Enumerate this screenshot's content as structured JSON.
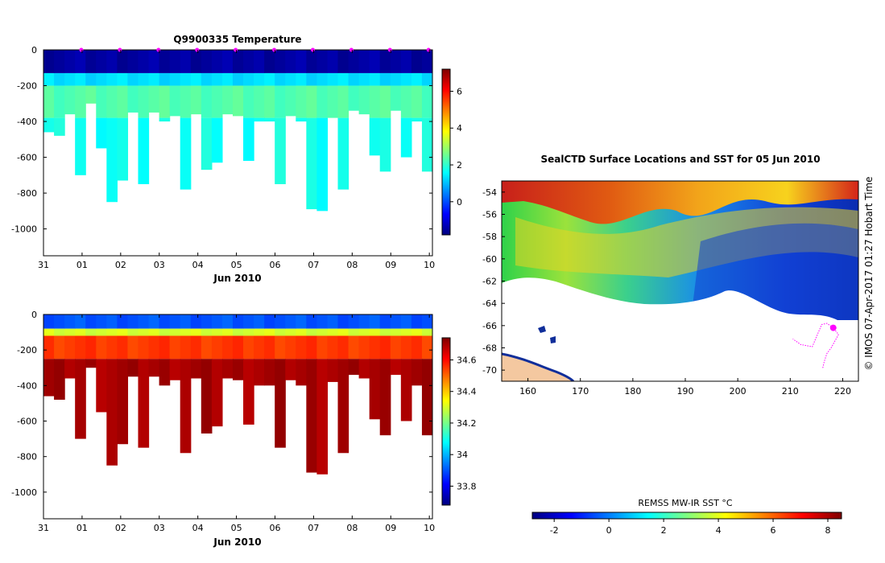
{
  "chart_data": [
    {
      "type": "heatmap",
      "id": "temperature",
      "title": "Q9900335  Temperature",
      "xlabel": "Jun 2010",
      "ylabel": "",
      "x_ticks": [
        "31",
        "01",
        "02",
        "03",
        "04",
        "05",
        "06",
        "07",
        "08",
        "09",
        "10"
      ],
      "y_ticks": [
        0,
        -200,
        -400,
        -600,
        -800,
        -1000
      ],
      "ylim": [
        -1150,
        0
      ],
      "xlim": [
        0,
        10.08
      ],
      "profile_times": [
        0.98,
        1.98,
        2.98,
        3.98,
        4.98,
        5.98,
        6.98,
        7.98,
        8.98,
        9.98
      ],
      "cast_bottoms": [
        -460,
        -480,
        -360,
        -700,
        -300,
        -550,
        -850,
        -730,
        -350,
        -750,
        -350,
        -400,
        -370,
        -780,
        -360,
        -670,
        -630,
        -360,
        -370,
        -620,
        -400,
        -400,
        -750,
        -370,
        -400,
        -890,
        -900,
        -380,
        -780,
        -340,
        -360,
        -590,
        -680,
        -340,
        -600,
        -400,
        -680
      ],
      "colorbar": {
        "label": "",
        "ticks": [
          6,
          4,
          2,
          0
        ],
        "range": [
          -1.8,
          7.2
        ]
      },
      "layers": [
        {
          "depth": [
            0,
            -130
          ],
          "value": -1.5
        },
        {
          "depth": [
            -130,
            -200
          ],
          "value": 1.3
        },
        {
          "depth": [
            -200,
            -380
          ],
          "value": 2.3
        },
        {
          "depth": [
            -380,
            -1150
          ],
          "value": 1.7
        }
      ]
    },
    {
      "type": "heatmap",
      "id": "salinity",
      "title": "",
      "xlabel": "Jun 2010",
      "ylabel": "",
      "x_ticks": [
        "31",
        "01",
        "02",
        "03",
        "04",
        "05",
        "06",
        "07",
        "08",
        "09",
        "10"
      ],
      "y_ticks": [
        0,
        -200,
        -400,
        -600,
        -800,
        -1000
      ],
      "ylim": [
        -1150,
        0
      ],
      "xlim": [
        0,
        10.08
      ],
      "colorbar": {
        "label": "",
        "ticks": [
          34.6,
          34.4,
          34.2,
          34,
          33.8
        ],
        "range": [
          33.68,
          34.74
        ]
      },
      "layers": [
        {
          "depth": [
            0,
            -80
          ],
          "value": 33.9
        },
        {
          "depth": [
            -80,
            -120
          ],
          "value": 34.3
        },
        {
          "depth": [
            -120,
            -250
          ],
          "value": 34.55
        },
        {
          "depth": [
            -250,
            -1150
          ],
          "value": 34.7
        }
      ]
    },
    {
      "type": "heatmap",
      "id": "sst_map",
      "title": "SealCTD Surface Locations and SST for 05 Jun 2010",
      "x_ticks": [
        160,
        170,
        180,
        190,
        200,
        210,
        220
      ],
      "y_ticks": [
        -54,
        -56,
        -58,
        -60,
        -62,
        -64,
        -66,
        -68,
        -70
      ],
      "xlim": [
        155,
        223
      ],
      "ylim": [
        -71,
        -53
      ],
      "colorbar": {
        "label": "REMSS MW-IR SST °C",
        "ticks": [
          -2,
          0,
          2,
          4,
          6,
          8
        ],
        "range": [
          -2.8,
          8.5
        ]
      },
      "track": [
        [
          216.2,
          -69.8
        ],
        [
          216.5,
          -69.2
        ],
        [
          217.0,
          -68.5
        ],
        [
          217.8,
          -68.0
        ],
        [
          218.5,
          -67.4
        ],
        [
          219.2,
          -66.8
        ],
        [
          218.2,
          -66.2
        ],
        [
          217.0,
          -65.8
        ],
        [
          216.0,
          -65.9
        ],
        [
          214.2,
          -67.9
        ],
        [
          212.0,
          -67.7
        ],
        [
          210.5,
          -67.2
        ]
      ]
    }
  ],
  "footer": {
    "credit": "© IMOS 07-Apr-2017 01:27 Hobart Time"
  },
  "colors": {
    "track": "#ff00ff",
    "land": "#f4c8a0",
    "ocean_none": "#ffffff"
  }
}
